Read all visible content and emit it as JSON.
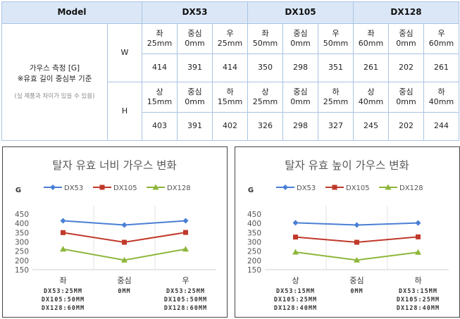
{
  "table": {
    "header_model": "Model",
    "models": [
      "DX53",
      "DX105",
      "DX128"
    ],
    "measure_title_line1": "가우스 측정 [G]",
    "measure_title_line2": "※유효 길이 중심부 기준",
    "measure_note": "(실 제품과 차이가 있을 수 있음)",
    "rows": [
      {
        "axis": "W",
        "positions": [
          [
            "좌",
            "25mm"
          ],
          [
            "중심",
            "0mm"
          ],
          [
            "우",
            "25mm"
          ],
          [
            "좌",
            "50mm"
          ],
          [
            "중심",
            "0mm"
          ],
          [
            "우",
            "50mm"
          ],
          [
            "좌",
            "60mm"
          ],
          [
            "중심",
            "0mm"
          ],
          [
            "우",
            "60mm"
          ]
        ],
        "values": [
          "414",
          "391",
          "414",
          "350",
          "298",
          "351",
          "261",
          "202",
          "261"
        ]
      },
      {
        "axis": "H",
        "positions": [
          [
            "상",
            "15mm"
          ],
          [
            "중심",
            "0mm"
          ],
          [
            "하",
            "15mm"
          ],
          [
            "상",
            "25mm"
          ],
          [
            "중심",
            "0mm"
          ],
          [
            "하",
            "25mm"
          ],
          [
            "상",
            "40mm"
          ],
          [
            "중심",
            "0mm"
          ],
          [
            "하",
            "40mm"
          ]
        ],
        "values": [
          "403",
          "391",
          "402",
          "326",
          "298",
          "327",
          "245",
          "202",
          "244"
        ]
      }
    ]
  },
  "colors": {
    "header_bg": "#dbe7f6",
    "grid_border": "#a9c4e3",
    "DX53": "#4a7fd4",
    "DX105": "#c0392b",
    "DX128": "#8db63c"
  },
  "chart_data": [
    {
      "type": "line",
      "title": "탈자 유효 너비 가우스 변화",
      "ylabel": "G",
      "ylim": [
        150,
        450
      ],
      "yticks": [
        150,
        200,
        250,
        300,
        350,
        400,
        450
      ],
      "categories": [
        "좌",
        "중심",
        "우"
      ],
      "category_sublabels": [
        [
          "DX53:25MM",
          "DX105:50MM",
          "DX128:60MM"
        ],
        [
          "0MM"
        ],
        [
          "DX53:25MM",
          "DX105:50MM",
          "DX128:60MM"
        ]
      ],
      "legend": "top",
      "series": [
        {
          "name": "DX53",
          "values": [
            414,
            391,
            414
          ]
        },
        {
          "name": "DX105",
          "values": [
            350,
            298,
            351
          ]
        },
        {
          "name": "DX128",
          "values": [
            261,
            202,
            261
          ]
        }
      ]
    },
    {
      "type": "line",
      "title": "탈자 유효 높이 가우스 변화",
      "ylabel": "G",
      "ylim": [
        150,
        450
      ],
      "yticks": [
        150,
        200,
        250,
        300,
        350,
        400,
        450
      ],
      "categories": [
        "상",
        "중심",
        "하"
      ],
      "category_sublabels": [
        [
          "DX53:15MM",
          "DX105:25MM",
          "DX128:40MM"
        ],
        [
          "0MM"
        ],
        [
          "DX53:15MM",
          "DX105:25MM",
          "DX128:40MM"
        ]
      ],
      "legend": "top",
      "series": [
        {
          "name": "DX53",
          "values": [
            403,
            391,
            402
          ]
        },
        {
          "name": "DX105",
          "values": [
            326,
            298,
            327
          ]
        },
        {
          "name": "DX128",
          "values": [
            245,
            202,
            244
          ]
        }
      ]
    }
  ]
}
